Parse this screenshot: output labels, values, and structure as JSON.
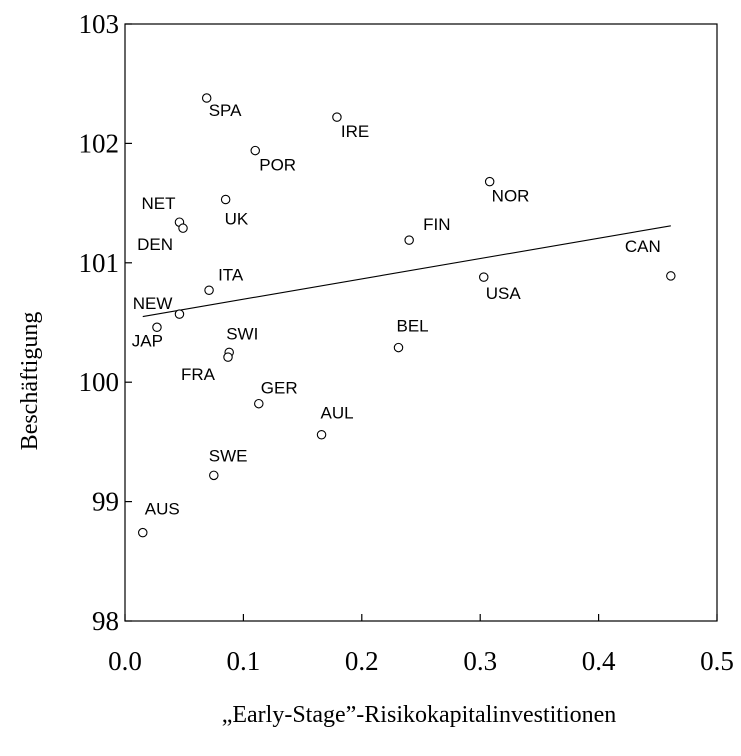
{
  "chart_data": {
    "type": "scatter",
    "xlabel": "„Early-Stage”-Risikokapitalinvestitionen",
    "ylabel": "Beschäftigung",
    "xlim": [
      0.0,
      0.5
    ],
    "ylim": [
      98,
      103
    ],
    "xticks": [
      "0.0",
      "0.1",
      "0.2",
      "0.3",
      "0.4",
      "0.5"
    ],
    "yticks": [
      "98",
      "99",
      "100",
      "101",
      "102",
      "103"
    ],
    "grid": false,
    "points": [
      {
        "label": "SPA",
        "x": 0.069,
        "y": 102.38
      },
      {
        "label": "IRE",
        "x": 0.179,
        "y": 102.22
      },
      {
        "label": "POR",
        "x": 0.11,
        "y": 101.94
      },
      {
        "label": "NOR",
        "x": 0.308,
        "y": 101.68
      },
      {
        "label": "UK",
        "x": 0.085,
        "y": 101.53
      },
      {
        "label": "NET",
        "x": 0.046,
        "y": 101.34
      },
      {
        "label": "DEN",
        "x": 0.049,
        "y": 101.29
      },
      {
        "label": "FIN",
        "x": 0.24,
        "y": 101.19
      },
      {
        "label": "CAN",
        "x": 0.461,
        "y": 100.89
      },
      {
        "label": "USA",
        "x": 0.303,
        "y": 100.88
      },
      {
        "label": "ITA",
        "x": 0.071,
        "y": 100.77
      },
      {
        "label": "NEW",
        "x": 0.046,
        "y": 100.57
      },
      {
        "label": "JAP",
        "x": 0.027,
        "y": 100.46
      },
      {
        "label": "BEL",
        "x": 0.231,
        "y": 100.29
      },
      {
        "label": "SWI",
        "x": 0.088,
        "y": 100.25
      },
      {
        "label": "FRA",
        "x": 0.087,
        "y": 100.21
      },
      {
        "label": "GER",
        "x": 0.113,
        "y": 99.82
      },
      {
        "label": "AUL",
        "x": 0.166,
        "y": 99.56
      },
      {
        "label": "SWE",
        "x": 0.075,
        "y": 99.22
      },
      {
        "label": "AUS",
        "x": 0.015,
        "y": 98.74
      }
    ],
    "trendline": {
      "x": [
        0.015,
        0.461
      ],
      "y": [
        100.55,
        101.31
      ]
    }
  }
}
